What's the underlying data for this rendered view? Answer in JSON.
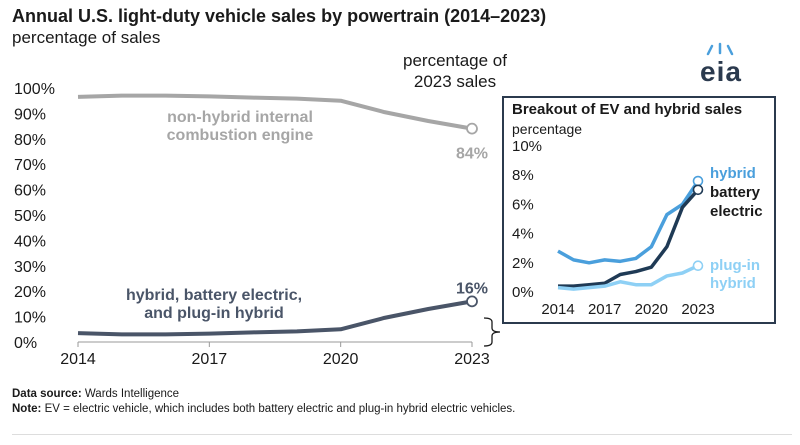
{
  "header": {
    "title": "Annual U.S. light-duty vehicle sales by powertrain (2014–2023)",
    "ylabel": "percentage of sales",
    "pct2023_line1": "percentage of",
    "pct2023_line2": "2023 sales",
    "logo_text": "eia"
  },
  "footer": {
    "source_label": "Data source:",
    "source_text": " Wards Intelligence",
    "note_label": "Note:",
    "note_text": " EV = electric vehicle, which includes both battery electric and plug-in hybrid electric vehicles."
  },
  "colors": {
    "ice": "#a6a6a6",
    "combined": "#4a5568",
    "hybrid": "#4a9fdc",
    "battery_electric": "#1f3a55",
    "plugin_hybrid": "#8ed0f5",
    "frame": "#2b3a4e"
  },
  "chart_data": [
    {
      "type": "line",
      "title": "Annual U.S. light-duty vehicle sales by powertrain (2014–2023)",
      "ylabel": "percentage of sales",
      "x": [
        2014,
        2015,
        2016,
        2017,
        2018,
        2019,
        2020,
        2021,
        2022,
        2023
      ],
      "xticks": [
        "2014",
        "2017",
        "2020",
        "2023"
      ],
      "yticks": [
        "0%",
        "10%",
        "20%",
        "30%",
        "40%",
        "50%",
        "60%",
        "70%",
        "80%",
        "90%",
        "100%"
      ],
      "ylim": [
        0,
        100
      ],
      "grid": false,
      "series": [
        {
          "name": "non-hybrid internal combustion engine",
          "label_line1": "non-hybrid internal",
          "label_line2": "combustion engine",
          "values": [
            96.5,
            97,
            97,
            96.7,
            96.2,
            95.8,
            95,
            90.5,
            87,
            84
          ],
          "end_label": "84%"
        },
        {
          "name": "hybrid, battery electric, and plug-in hybrid",
          "label_line1": "hybrid, battery electric,",
          "label_line2": "and plug-in hybrid",
          "values": [
            3.5,
            3,
            3,
            3.3,
            3.8,
            4.2,
            5,
            9.5,
            13,
            16
          ],
          "end_label": "16%"
        }
      ]
    },
    {
      "type": "line",
      "title": "Breakout of EV and hybrid sales",
      "ylabel": "percentage",
      "x": [
        2014,
        2015,
        2016,
        2017,
        2018,
        2019,
        2020,
        2021,
        2022,
        2023
      ],
      "xticks": [
        "2014",
        "2017",
        "2020",
        "2023"
      ],
      "yticks": [
        "0%",
        "2%",
        "4%",
        "6%",
        "8%",
        "10%"
      ],
      "ylim": [
        0,
        10
      ],
      "grid": false,
      "series": [
        {
          "name": "hybrid",
          "label_line1": "hybrid",
          "values": [
            2.8,
            2.2,
            2.0,
            2.2,
            2.1,
            2.3,
            3.1,
            5.3,
            6.0,
            7.6
          ]
        },
        {
          "name": "battery electric",
          "label_line1": "battery",
          "label_line2": "electric",
          "values": [
            0.4,
            0.4,
            0.5,
            0.6,
            1.2,
            1.4,
            1.7,
            3.1,
            5.8,
            7.0
          ]
        },
        {
          "name": "plug-in hybrid",
          "label_line1": "plug-in",
          "label_line2": "hybrid",
          "values": [
            0.3,
            0.2,
            0.3,
            0.4,
            0.7,
            0.5,
            0.5,
            1.1,
            1.3,
            1.8
          ]
        }
      ]
    }
  ]
}
